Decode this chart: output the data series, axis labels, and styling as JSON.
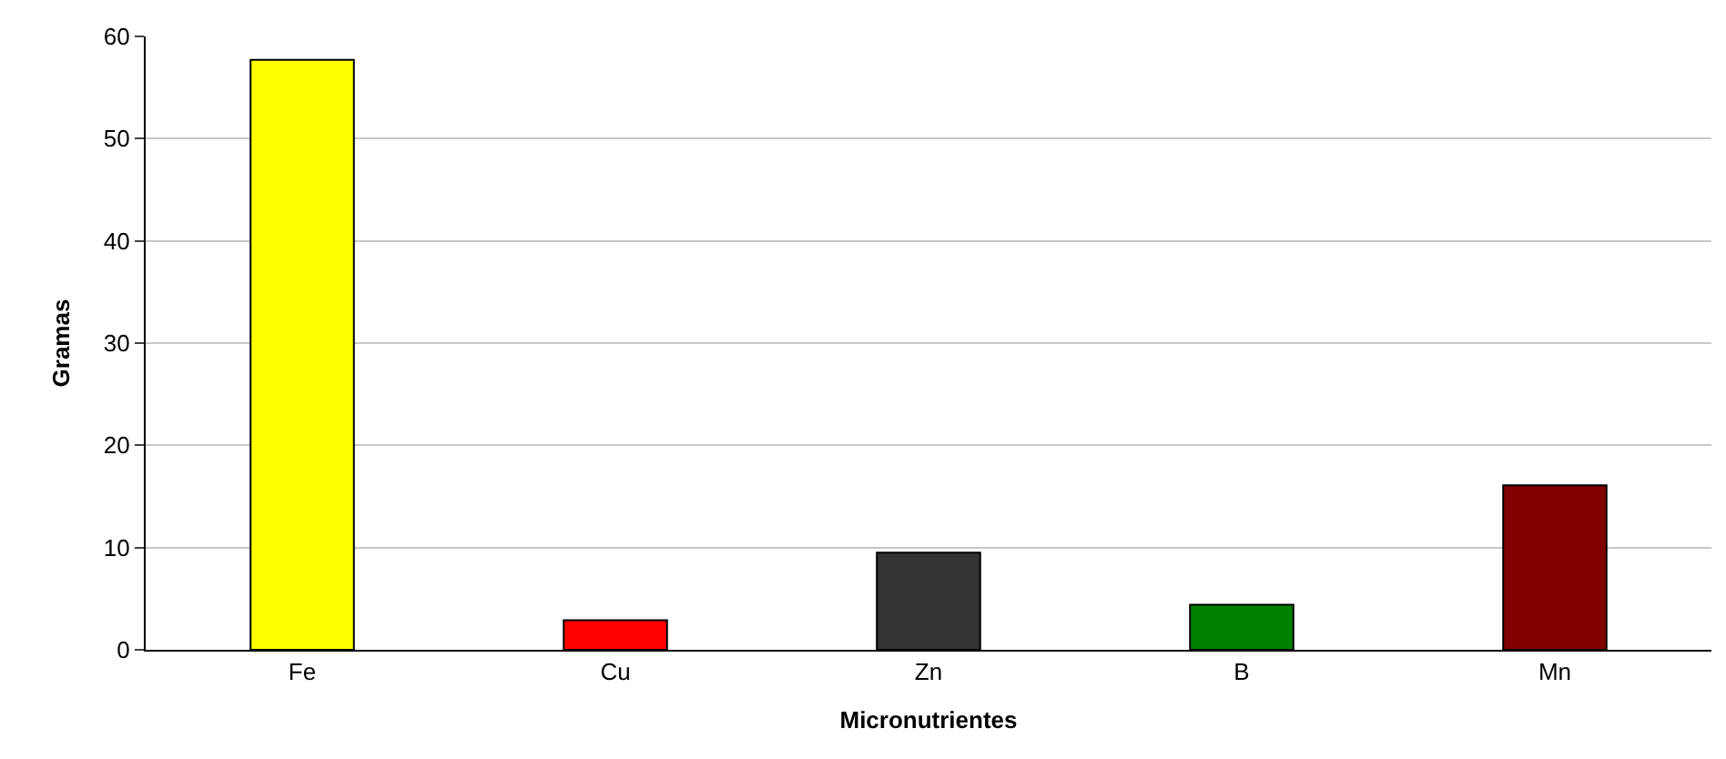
{
  "chart_data": {
    "type": "bar",
    "xlabel": "Micronutrientes",
    "ylabel": "Gramas",
    "categories": [
      "Fe",
      "Cu",
      "Zn",
      "B",
      "Mn"
    ],
    "values": [
      57.7,
      2.9,
      9.5,
      4.4,
      16.1
    ],
    "colors": [
      "#ffff00",
      "#ff0000",
      "#333333",
      "#008000",
      "#800000"
    ],
    "ylim": [
      0,
      60
    ],
    "yticks": [
      0,
      10,
      20,
      30,
      40,
      50,
      60
    ],
    "grid": "y"
  }
}
